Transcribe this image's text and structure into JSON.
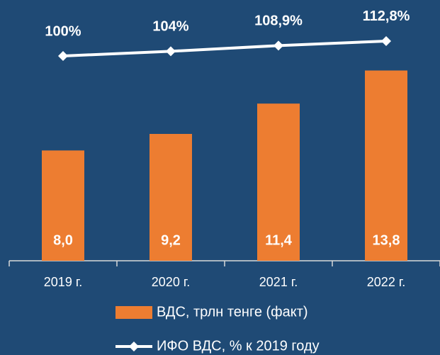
{
  "chart_data": {
    "type": "bar-line",
    "categories": [
      "2019 г.",
      "2020 г.",
      "2021 г.",
      "2022 г."
    ],
    "series": [
      {
        "name": "ВДС, трлн тенге (факт)",
        "type": "bar",
        "color": "#ed7d31",
        "values": [
          8.0,
          9.2,
          11.4,
          13.8
        ],
        "value_labels": [
          "8,0",
          "9,2",
          "11,4",
          "13,8"
        ]
      },
      {
        "name": "ИФО ВДС, % к 2019 году",
        "type": "line",
        "axis": "y2",
        "color": "#ffffff",
        "values": [
          100,
          104,
          108.9,
          112.8
        ],
        "value_labels": [
          "100%",
          "104%",
          "108,9%",
          "112,8%"
        ]
      }
    ],
    "ylim": [
      0,
      18.4
    ],
    "y2lim": [
      -76,
      142
    ],
    "legend": "bottom"
  }
}
